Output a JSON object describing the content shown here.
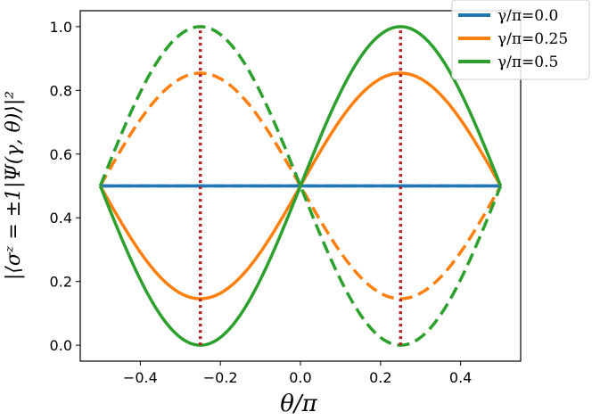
{
  "chart_data": {
    "type": "line",
    "xlabel": "θ/π",
    "ylabel": "|⟨σᶻ = ±1|Ψ(γ, θ)⟩|²",
    "xlim": [
      -0.55,
      0.55
    ],
    "ylim": [
      -0.05,
      1.05
    ],
    "xticks": [
      -0.4,
      -0.2,
      0.0,
      0.2,
      0.4
    ],
    "xtick_labels": [
      "−0.4",
      "−0.2",
      "0.0",
      "0.2",
      "0.4"
    ],
    "yticks": [
      0.0,
      0.2,
      0.4,
      0.6,
      0.8,
      1.0
    ],
    "ytick_labels": [
      "0.0",
      "0.2",
      "0.4",
      "0.6",
      "0.8",
      "1.0"
    ],
    "grid": false,
    "legend_position": "top-right",
    "series": [
      {
        "name": "γ/π=0.0",
        "color": "#1f77b4",
        "x": [
          -0.5,
          -0.25,
          0.0,
          0.25,
          0.5
        ],
        "solid": [
          0.5,
          0.5,
          0.5,
          0.5,
          0.5
        ],
        "dashed": [
          0.5,
          0.5,
          0.5,
          0.5,
          0.5
        ]
      },
      {
        "name": "γ/π=0.25",
        "color": "#ff7f0e",
        "x": [
          -0.5,
          -0.25,
          0.0,
          0.25,
          0.5
        ],
        "solid": [
          0.5,
          0.146,
          0.5,
          0.854,
          0.5
        ],
        "dashed": [
          0.5,
          0.854,
          0.5,
          0.146,
          0.5
        ]
      },
      {
        "name": "γ/π=0.5",
        "color": "#2ca02c",
        "x": [
          -0.5,
          -0.25,
          0.0,
          0.25,
          0.5
        ],
        "solid": [
          0.5,
          0.0,
          0.5,
          1.0,
          0.5
        ],
        "dashed": [
          0.5,
          1.0,
          0.5,
          0.0,
          0.5
        ]
      }
    ],
    "vertical_markers": [
      -0.25,
      0.25
    ],
    "marker_color": "#b22222"
  }
}
